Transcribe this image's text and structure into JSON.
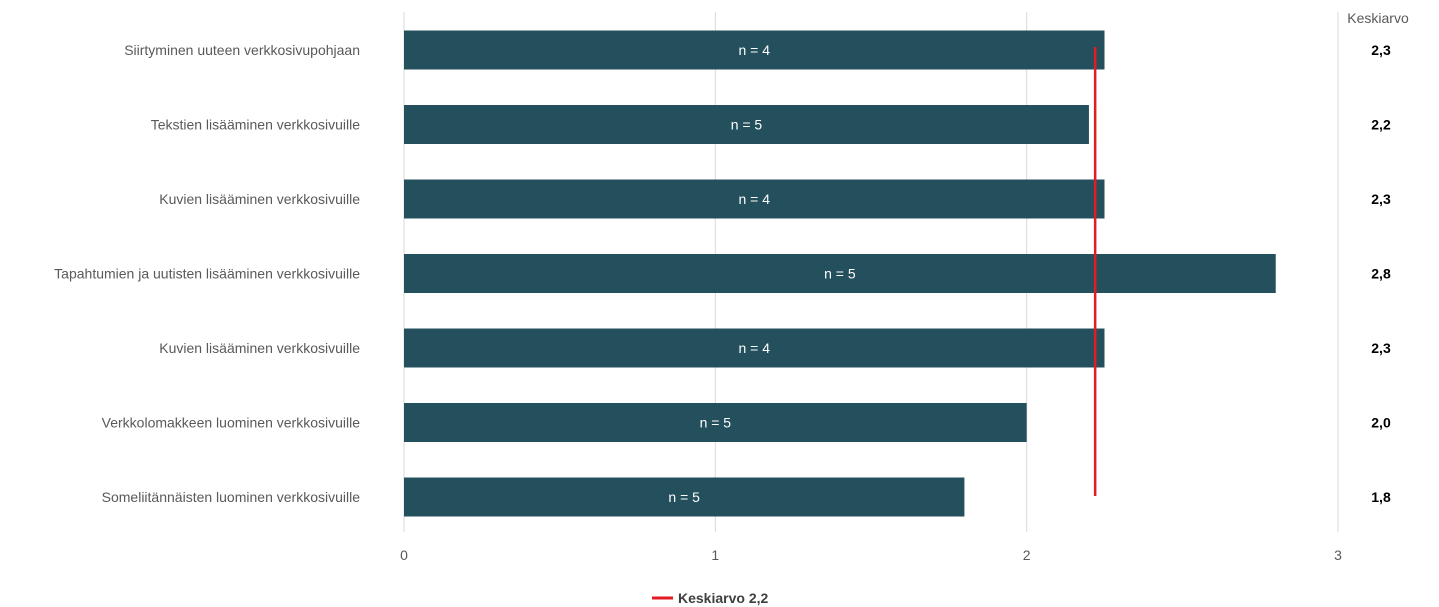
{
  "chart_data": {
    "type": "bar",
    "orientation": "horizontal",
    "categories": [
      "Siirtyminen uuteen verkkosivupohjaan",
      "Tekstien lisääminen verkkosivuille",
      "Kuvien lisääminen verkkosivuille",
      "Tapahtumien ja uutisten lisääminen verkkosivuille",
      "Kuvien lisääminen verkkosivuille",
      "Verkkolomakkeen luominen verkkosivuille",
      "Someliitännäisten luominen verkkosivuille"
    ],
    "values": [
      2.25,
      2.2,
      2.25,
      2.8,
      2.25,
      2.0,
      1.8
    ],
    "bar_labels": [
      "n = 4",
      "n = 5",
      "n = 4",
      "n = 5",
      "n = 4",
      "n = 5",
      "n = 5"
    ],
    "value_column_header": "Keskiarvo",
    "value_column": [
      "2,3",
      "2,2",
      "2,3",
      "2,8",
      "2,3",
      "2,0",
      "1,8"
    ],
    "x_ticks": [
      0,
      1,
      2,
      3
    ],
    "x_tick_labels": [
      "0",
      "1",
      "2",
      "3"
    ],
    "xlim": [
      0,
      3
    ],
    "grid": true,
    "reference_line": {
      "value": 2.22,
      "label": "Keskiarvo 2,2",
      "color": "#e31b23"
    },
    "legend_position": "bottom",
    "colors": {
      "bar": "#244f5c",
      "grid": "#d9d9d9",
      "reference": "#e31b23"
    },
    "title": "",
    "xlabel": "",
    "ylabel": ""
  }
}
